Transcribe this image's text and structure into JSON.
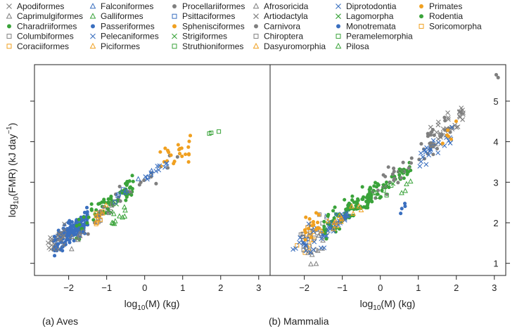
{
  "chart_data": {
    "type": "scatter",
    "legend": {
      "placement": "top",
      "entries": [
        {
          "name": "Apodiformes",
          "marker": "x",
          "color": "#7f7f7f"
        },
        {
          "name": "Caprimulgiformes",
          "marker": "triangle",
          "color": "#7f7f7f"
        },
        {
          "name": "Charadriiformes",
          "marker": "dot",
          "color": "#3aa33a"
        },
        {
          "name": "Columbiformes",
          "marker": "square",
          "color": "#7f7f7f"
        },
        {
          "name": "Coraciiformes",
          "marker": "square",
          "color": "#f0a020"
        },
        {
          "name": "Falconiformes",
          "marker": "triangle",
          "color": "#3a6fbf"
        },
        {
          "name": "Galliformes",
          "marker": "triangle",
          "color": "#3aa33a"
        },
        {
          "name": "Passeriformes",
          "marker": "dot",
          "color": "#3a6fbf"
        },
        {
          "name": "Pelecaniformes",
          "marker": "x",
          "color": "#3a6fbf"
        },
        {
          "name": "Piciformes",
          "marker": "triangle",
          "color": "#f0a020"
        },
        {
          "name": "Procellariiformes",
          "marker": "dot",
          "color": "#7f7f7f"
        },
        {
          "name": "Psittaciformes",
          "marker": "square",
          "color": "#3a6fbf"
        },
        {
          "name": "Sphenisciformes",
          "marker": "dot",
          "color": "#f0a020"
        },
        {
          "name": "Strigiformes",
          "marker": "x",
          "color": "#3aa33a"
        },
        {
          "name": "Struthioniformes",
          "marker": "square",
          "color": "#3aa33a"
        },
        {
          "name": "Afrosoricida",
          "marker": "triangle",
          "color": "#7f7f7f"
        },
        {
          "name": "Artiodactyla",
          "marker": "x",
          "color": "#7f7f7f"
        },
        {
          "name": "Carnivora",
          "marker": "dot",
          "color": "#7f7f7f"
        },
        {
          "name": "Chiroptera",
          "marker": "square",
          "color": "#7f7f7f"
        },
        {
          "name": "Dasyuromorphia",
          "marker": "triangle",
          "color": "#f0a020"
        },
        {
          "name": "Diprotodontia",
          "marker": "x",
          "color": "#3a6fbf"
        },
        {
          "name": "Lagomorpha",
          "marker": "x",
          "color": "#3aa33a"
        },
        {
          "name": "Monotremata",
          "marker": "dot",
          "color": "#3a6fbf"
        },
        {
          "name": "Peramelemorphia",
          "marker": "square",
          "color": "#3aa33a"
        },
        {
          "name": "Pilosa",
          "marker": "triangle",
          "color": "#3aa33a"
        },
        {
          "name": "Primates",
          "marker": "dot",
          "color": "#f0a020"
        },
        {
          "name": "Rodentia",
          "marker": "dot",
          "color": "#3aa33a"
        },
        {
          "name": "Soricomorpha",
          "marker": "square",
          "color": "#f0a020"
        }
      ]
    },
    "ylabel_base": "log",
    "ylabel_sub": "10",
    "ylabel_main": "(FMR) (kJ day",
    "ylabel_sup": "−1",
    "ylabel_end": ")",
    "yticks": [
      1,
      2,
      3,
      4,
      5
    ],
    "ylim": [
      0.7,
      5.9
    ],
    "grid": false,
    "panels": [
      {
        "caption": "(a) Aves",
        "xlabel_base": "log",
        "xlabel_sub": "10",
        "xlabel_main": "(M) (kg)",
        "xlim": [
          -2.9,
          3.3
        ],
        "xticks": [
          -2,
          -1,
          0,
          1,
          2,
          3
        ],
        "xtick_labels": [
          "−2",
          "−1",
          "0",
          "1",
          "2",
          "3"
        ],
        "clusters": [
          {
            "group": "Passeriformes",
            "n": 170,
            "x": [
              -2.4,
              -1.5
            ],
            "slope": 0.72,
            "intercept": 3.17,
            "spread": 0.13
          },
          {
            "group": "Apodiformes",
            "n": 22,
            "x": [
              -2.55,
              -2.1
            ],
            "slope": 0.7,
            "intercept": 3.2,
            "spread": 0.12
          },
          {
            "group": "Charadriiformes",
            "n": 50,
            "x": [
              -1.8,
              -0.4
            ],
            "slope": 0.78,
            "intercept": 3.25,
            "spread": 0.14
          },
          {
            "group": "Charadriiformes",
            "n": 18,
            "x": [
              -0.5,
              -0.3
            ],
            "slope": 0.75,
            "intercept": 3.2,
            "spread": 0.18
          },
          {
            "group": "Galliformes",
            "n": 10,
            "x": [
              -1.0,
              -0.5
            ],
            "slope": 0.8,
            "intercept": 2.7,
            "spread": 0.1
          },
          {
            "group": "Columbiformes",
            "n": 12,
            "x": [
              -1.7,
              -0.6
            ],
            "slope": 0.7,
            "intercept": 2.95,
            "spread": 0.1
          },
          {
            "group": "Caprimulgiformes",
            "n": 6,
            "x": [
              -2.0,
              -1.7
            ],
            "slope": 0.6,
            "intercept": 2.7,
            "spread": 0.1
          },
          {
            "group": "Procellariiformes",
            "n": 26,
            "x": [
              -1.5,
              0.9
            ],
            "slope": 0.72,
            "intercept": 3.05,
            "spread": 0.12
          },
          {
            "group": "Sphenisciformes",
            "n": 22,
            "x": [
              0.4,
              1.2
            ],
            "slope": 0.7,
            "intercept": 3.15,
            "spread": 0.18
          },
          {
            "group": "Pelecaniformes",
            "n": 10,
            "x": [
              0.0,
              0.6
            ],
            "slope": 0.6,
            "intercept": 3.1,
            "spread": 0.08
          },
          {
            "group": "Strigiformes",
            "n": 6,
            "x": [
              -1.0,
              -0.3
            ],
            "slope": 0.7,
            "intercept": 3.0,
            "spread": 0.08
          },
          {
            "group": "Coraciiformes",
            "n": 6,
            "x": [
              -1.4,
              -1.0
            ],
            "slope": 0.7,
            "intercept": 3.0,
            "spread": 0.08
          },
          {
            "group": "Piciformes",
            "n": 4,
            "x": [
              -1.3,
              -1.0
            ],
            "slope": 0.7,
            "intercept": 3.0,
            "spread": 0.08
          },
          {
            "group": "Falconiformes",
            "n": 6,
            "x": [
              -0.8,
              0.4
            ],
            "slope": 0.7,
            "intercept": 3.1,
            "spread": 0.08
          },
          {
            "group": "Psittaciformes",
            "n": 4,
            "x": [
              -1.0,
              -0.5
            ],
            "slope": 0.7,
            "intercept": 3.1,
            "spread": 0.08
          }
        ],
        "points": [
          {
            "group": "Struthioniformes",
            "x": 1.7,
            "y": 4.2
          },
          {
            "group": "Struthioniformes",
            "x": 1.75,
            "y": 4.22
          },
          {
            "group": "Struthioniformes",
            "x": 1.95,
            "y": 4.25
          },
          {
            "group": "Sphenisciformes",
            "x": 1.2,
            "y": 4.15
          }
        ]
      },
      {
        "caption": "(b) Mammalia",
        "xlabel_base": "log",
        "xlabel_sub": "10",
        "xlabel_main": "(M) (kg)",
        "xlim": [
          -2.9,
          3.3
        ],
        "xticks": [
          -2,
          -1,
          0,
          1,
          2,
          3
        ],
        "xtick_labels": [
          "−2",
          "−1",
          "0",
          "1",
          "2",
          "3"
        ],
        "clusters": [
          {
            "group": "Soricomorpha",
            "n": 16,
            "x": [
              -2.2,
              -1.7
            ],
            "slope": 0.7,
            "intercept": 3.05,
            "spread": 0.2
          },
          {
            "group": "Chiroptera",
            "n": 22,
            "x": [
              -2.1,
              -1.4
            ],
            "slope": 0.7,
            "intercept": 3.0,
            "spread": 0.18
          },
          {
            "group": "Afrosoricida",
            "n": 10,
            "x": [
              -1.9,
              -1.5
            ],
            "slope": 0.6,
            "intercept": 2.3,
            "spread": 0.18
          },
          {
            "group": "Diprotodontia",
            "n": 30,
            "x": [
              -2.3,
              -1.4
            ],
            "slope": 0.65,
            "intercept": 2.75,
            "spread": 0.2
          },
          {
            "group": "Primates",
            "n": 16,
            "x": [
              -2.0,
              -1.6
            ],
            "slope": 0.5,
            "intercept": 2.8,
            "spread": 0.15
          },
          {
            "group": "Rodentia",
            "n": 90,
            "x": [
              -1.5,
              -0.2
            ],
            "slope": 0.72,
            "intercept": 2.85,
            "spread": 0.16
          },
          {
            "group": "Diprotodontia",
            "n": 30,
            "x": [
              -1.4,
              -0.8
            ],
            "slope": 0.6,
            "intercept": 2.7,
            "spread": 0.08
          },
          {
            "group": "Rodentia",
            "n": 40,
            "x": [
              -0.4,
              0.8
            ],
            "slope": 0.7,
            "intercept": 2.85,
            "spread": 0.12
          },
          {
            "group": "Carnivora",
            "n": 36,
            "x": [
              -0.2,
              1.5
            ],
            "slope": 0.8,
            "intercept": 2.85,
            "spread": 0.16
          },
          {
            "group": "Lagomorpha",
            "n": 6,
            "x": [
              0.0,
              0.6
            ],
            "slope": 0.7,
            "intercept": 2.85,
            "spread": 0.08
          },
          {
            "group": "Dasyuromorphia",
            "n": 14,
            "x": [
              -1.6,
              -0.3
            ],
            "slope": 0.7,
            "intercept": 2.8,
            "spread": 0.1
          },
          {
            "group": "Peramelemorphia",
            "n": 6,
            "x": [
              -0.2,
              0.3
            ],
            "slope": 0.7,
            "intercept": 2.75,
            "spread": 0.08
          },
          {
            "group": "Pilosa",
            "n": 4,
            "x": [
              0.5,
              0.8
            ],
            "slope": 0.7,
            "intercept": 2.35,
            "spread": 0.06
          },
          {
            "group": "Monotremata",
            "n": 4,
            "x": [
              0.4,
              0.7
            ],
            "slope": 0.7,
            "intercept": 2.0,
            "spread": 0.08
          },
          {
            "group": "Artiodactyla",
            "n": 36,
            "x": [
              1.3,
              2.2
            ],
            "slope": 0.8,
            "intercept": 2.95,
            "spread": 0.14
          },
          {
            "group": "Diprotodontia",
            "n": 24,
            "x": [
              1.0,
              1.9
            ],
            "slope": 0.75,
            "intercept": 2.8,
            "spread": 0.14
          },
          {
            "group": "Carnivora",
            "n": 18,
            "x": [
              1.2,
              2.2
            ],
            "slope": 0.8,
            "intercept": 3.0,
            "spread": 0.14
          },
          {
            "group": "Primates",
            "n": 6,
            "x": [
              1.6,
              2.0
            ],
            "slope": 0.7,
            "intercept": 2.95,
            "spread": 0.1
          }
        ],
        "points": [
          {
            "group": "Carnivora",
            "x": 3.05,
            "y": 5.65
          },
          {
            "group": "Carnivora",
            "x": 3.1,
            "y": 5.58
          }
        ]
      }
    ]
  }
}
